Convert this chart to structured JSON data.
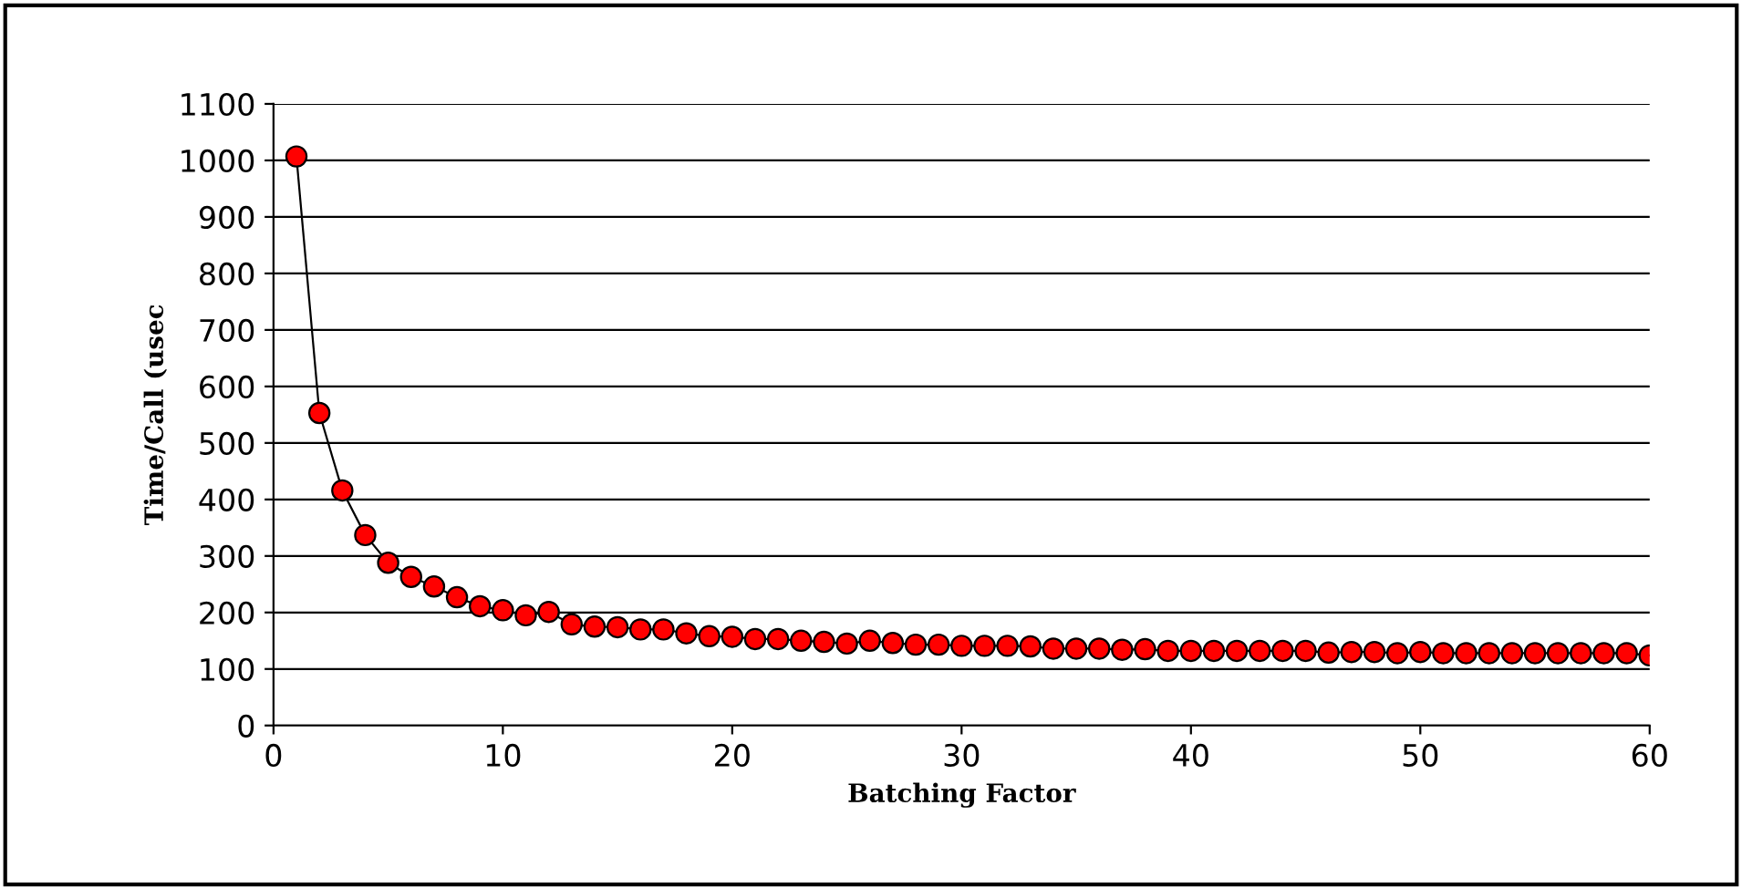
{
  "chart_data": {
    "type": "line",
    "xlabel": "Batching Factor",
    "ylabel": "Time/Call (usec",
    "x": [
      1,
      2,
      3,
      4,
      5,
      6,
      7,
      8,
      9,
      10,
      11,
      12,
      13,
      14,
      15,
      16,
      17,
      18,
      19,
      20,
      21,
      22,
      23,
      24,
      25,
      26,
      27,
      28,
      29,
      30,
      31,
      32,
      33,
      34,
      35,
      36,
      37,
      38,
      39,
      40,
      41,
      42,
      43,
      44,
      45,
      46,
      47,
      48,
      49,
      50,
      51,
      52,
      53,
      54,
      55,
      56,
      57,
      58,
      59,
      60
    ],
    "series": [
      {
        "color": "#ff0000",
        "values": [
          1007,
          553,
          416,
          337,
          288,
          263,
          246,
          227,
          211,
          204,
          195,
          201,
          179,
          175,
          174,
          170,
          170,
          163,
          158,
          157,
          153,
          153,
          150,
          148,
          145,
          150,
          146,
          143,
          143,
          141,
          141,
          141,
          140,
          136,
          136,
          136,
          134,
          135,
          132,
          132,
          132,
          132,
          132,
          132,
          132,
          129,
          130,
          130,
          128,
          130,
          128,
          128,
          128,
          128,
          128,
          128,
          128,
          128,
          128,
          124
        ]
      }
    ],
    "xlim": [
      0,
      60
    ],
    "xticks": [
      0,
      10,
      20,
      30,
      40,
      50,
      60
    ],
    "ylim": [
      0,
      1100
    ],
    "yticks": [
      0,
      100,
      200,
      300,
      400,
      500,
      600,
      700,
      800,
      900,
      1000,
      1100
    ],
    "grid": "y",
    "marker": "circle",
    "line_style": "solid",
    "legend": false
  }
}
